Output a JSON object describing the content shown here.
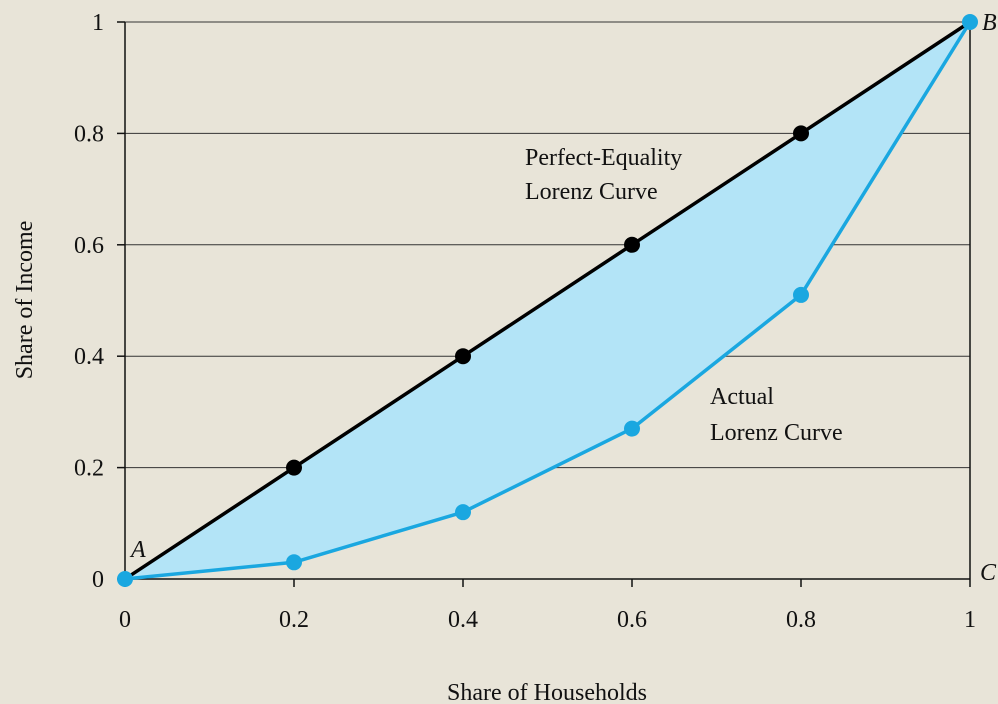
{
  "chart_data": {
    "type": "line",
    "title": "",
    "xlabel": "Share of Households",
    "ylabel": "Share of Income",
    "xlim": [
      0,
      1
    ],
    "ylim": [
      0,
      1
    ],
    "grid": "horizontal",
    "x_ticks": [
      "0",
      "0.2",
      "0.4",
      "0.6",
      "0.8",
      "1"
    ],
    "y_ticks": [
      "0",
      "0.2",
      "0.4",
      "0.6",
      "0.8",
      "1"
    ],
    "x": [
      0,
      0.2,
      0.4,
      0.6,
      0.8,
      1
    ],
    "series": [
      {
        "key": "equality",
        "values": [
          0,
          0.2,
          0.4,
          0.6,
          0.8,
          1
        ],
        "color": "#000000"
      },
      {
        "key": "actual",
        "values": [
          0,
          0.03,
          0.12,
          0.27,
          0.51,
          1
        ],
        "color": "#1aa7e0"
      }
    ],
    "fill_between_color": "#b3e4f7",
    "annotations": {
      "equality_line1": "Perfect-Equality",
      "equality_line2": "Lorenz Curve",
      "actual_line1": "Actual",
      "actual_line2": "Lorenz Curve",
      "point_a": "A",
      "point_b": "B",
      "point_c": "C"
    }
  }
}
